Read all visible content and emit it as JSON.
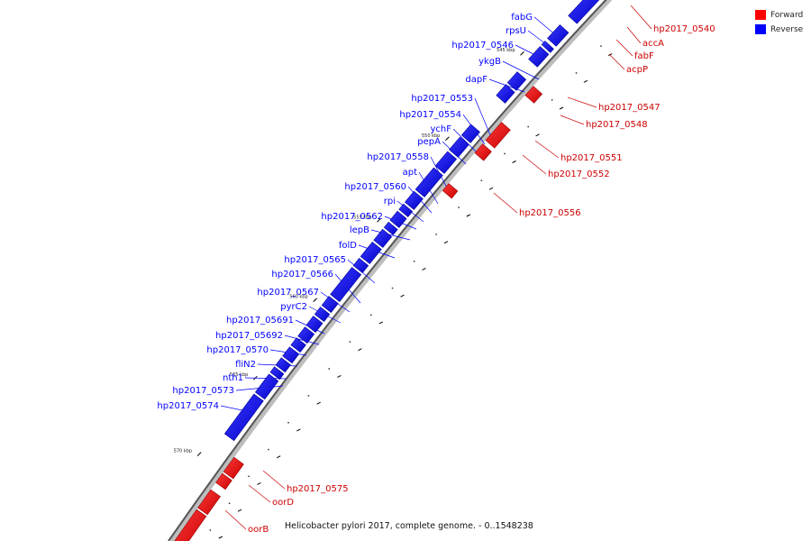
{
  "caption": "Helicobacter pylori 2017, complete genome. - 0..1548238",
  "legend": [
    {
      "label": "Forward",
      "color": "#ff0000"
    },
    {
      "label": "Reverse",
      "color": "#0000ff"
    }
  ],
  "ticks": [
    "545 kbp",
    "550 kbp",
    "555 kbp",
    "560 kbp",
    "565 kbp",
    "570 kbp"
  ],
  "forward_genes": [
    "hp2017_0540",
    "accA",
    "fabF",
    "acpP",
    "hp2017_0547",
    "hp2017_0548",
    "hp2017_0551",
    "hp2017_0552",
    "hp2017_0556",
    "hp2017_0575",
    "oorD",
    "oorB"
  ],
  "reverse_genes": [
    "fabG",
    "rpsU",
    "hp2017_0546",
    "ykgB",
    "dapF",
    "hp2017_0553",
    "hp2017_0554",
    "ychF",
    "pepA",
    "hp2017_0558",
    "apt",
    "hp2017_0560",
    "rpi",
    "hp2017_0562",
    "lepB",
    "folD",
    "hp2017_0565",
    "hp2017_0566",
    "hp2017_0567",
    "pyrC2",
    "hp2017_05691",
    "hp2017_05692",
    "hp2017_0570",
    "fliN2",
    "nth1",
    "hp2017_0573",
    "hp2017_0574"
  ]
}
